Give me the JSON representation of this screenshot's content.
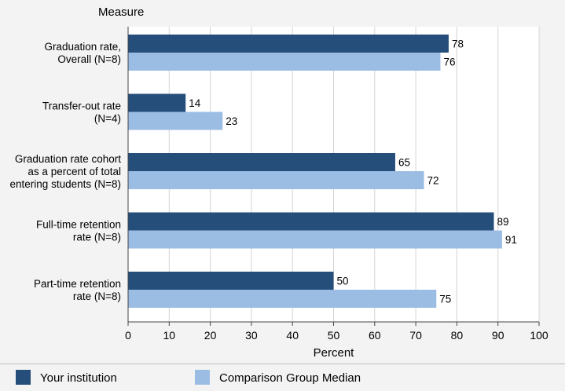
{
  "chart_data": {
    "type": "bar",
    "orientation": "horizontal",
    "y_axis_title": "Measure",
    "xlabel": "Percent",
    "xlim": [
      0,
      100
    ],
    "x_ticks": [
      0,
      10,
      20,
      30,
      40,
      50,
      60,
      70,
      80,
      90,
      100
    ],
    "grid": true,
    "categories": [
      {
        "label_lines": [
          "Graduation rate,",
          "Overall (N=8)"
        ]
      },
      {
        "label_lines": [
          "Transfer-out rate",
          "(N=4)"
        ]
      },
      {
        "label_lines": [
          "Graduation rate cohort",
          "as a percent of total",
          "entering students (N=8)"
        ]
      },
      {
        "label_lines": [
          "Full-time retention",
          "rate (N=8)"
        ]
      },
      {
        "label_lines": [
          "Part-time retention",
          "rate (N=8)"
        ]
      }
    ],
    "series": [
      {
        "name": "Your institution",
        "color": "#264e7b",
        "values": [
          78,
          14,
          65,
          89,
          50
        ]
      },
      {
        "name": "Comparison Group Median",
        "color": "#9cbde3",
        "values": [
          76,
          23,
          72,
          91,
          75
        ]
      }
    ],
    "legend_position": "bottom"
  }
}
